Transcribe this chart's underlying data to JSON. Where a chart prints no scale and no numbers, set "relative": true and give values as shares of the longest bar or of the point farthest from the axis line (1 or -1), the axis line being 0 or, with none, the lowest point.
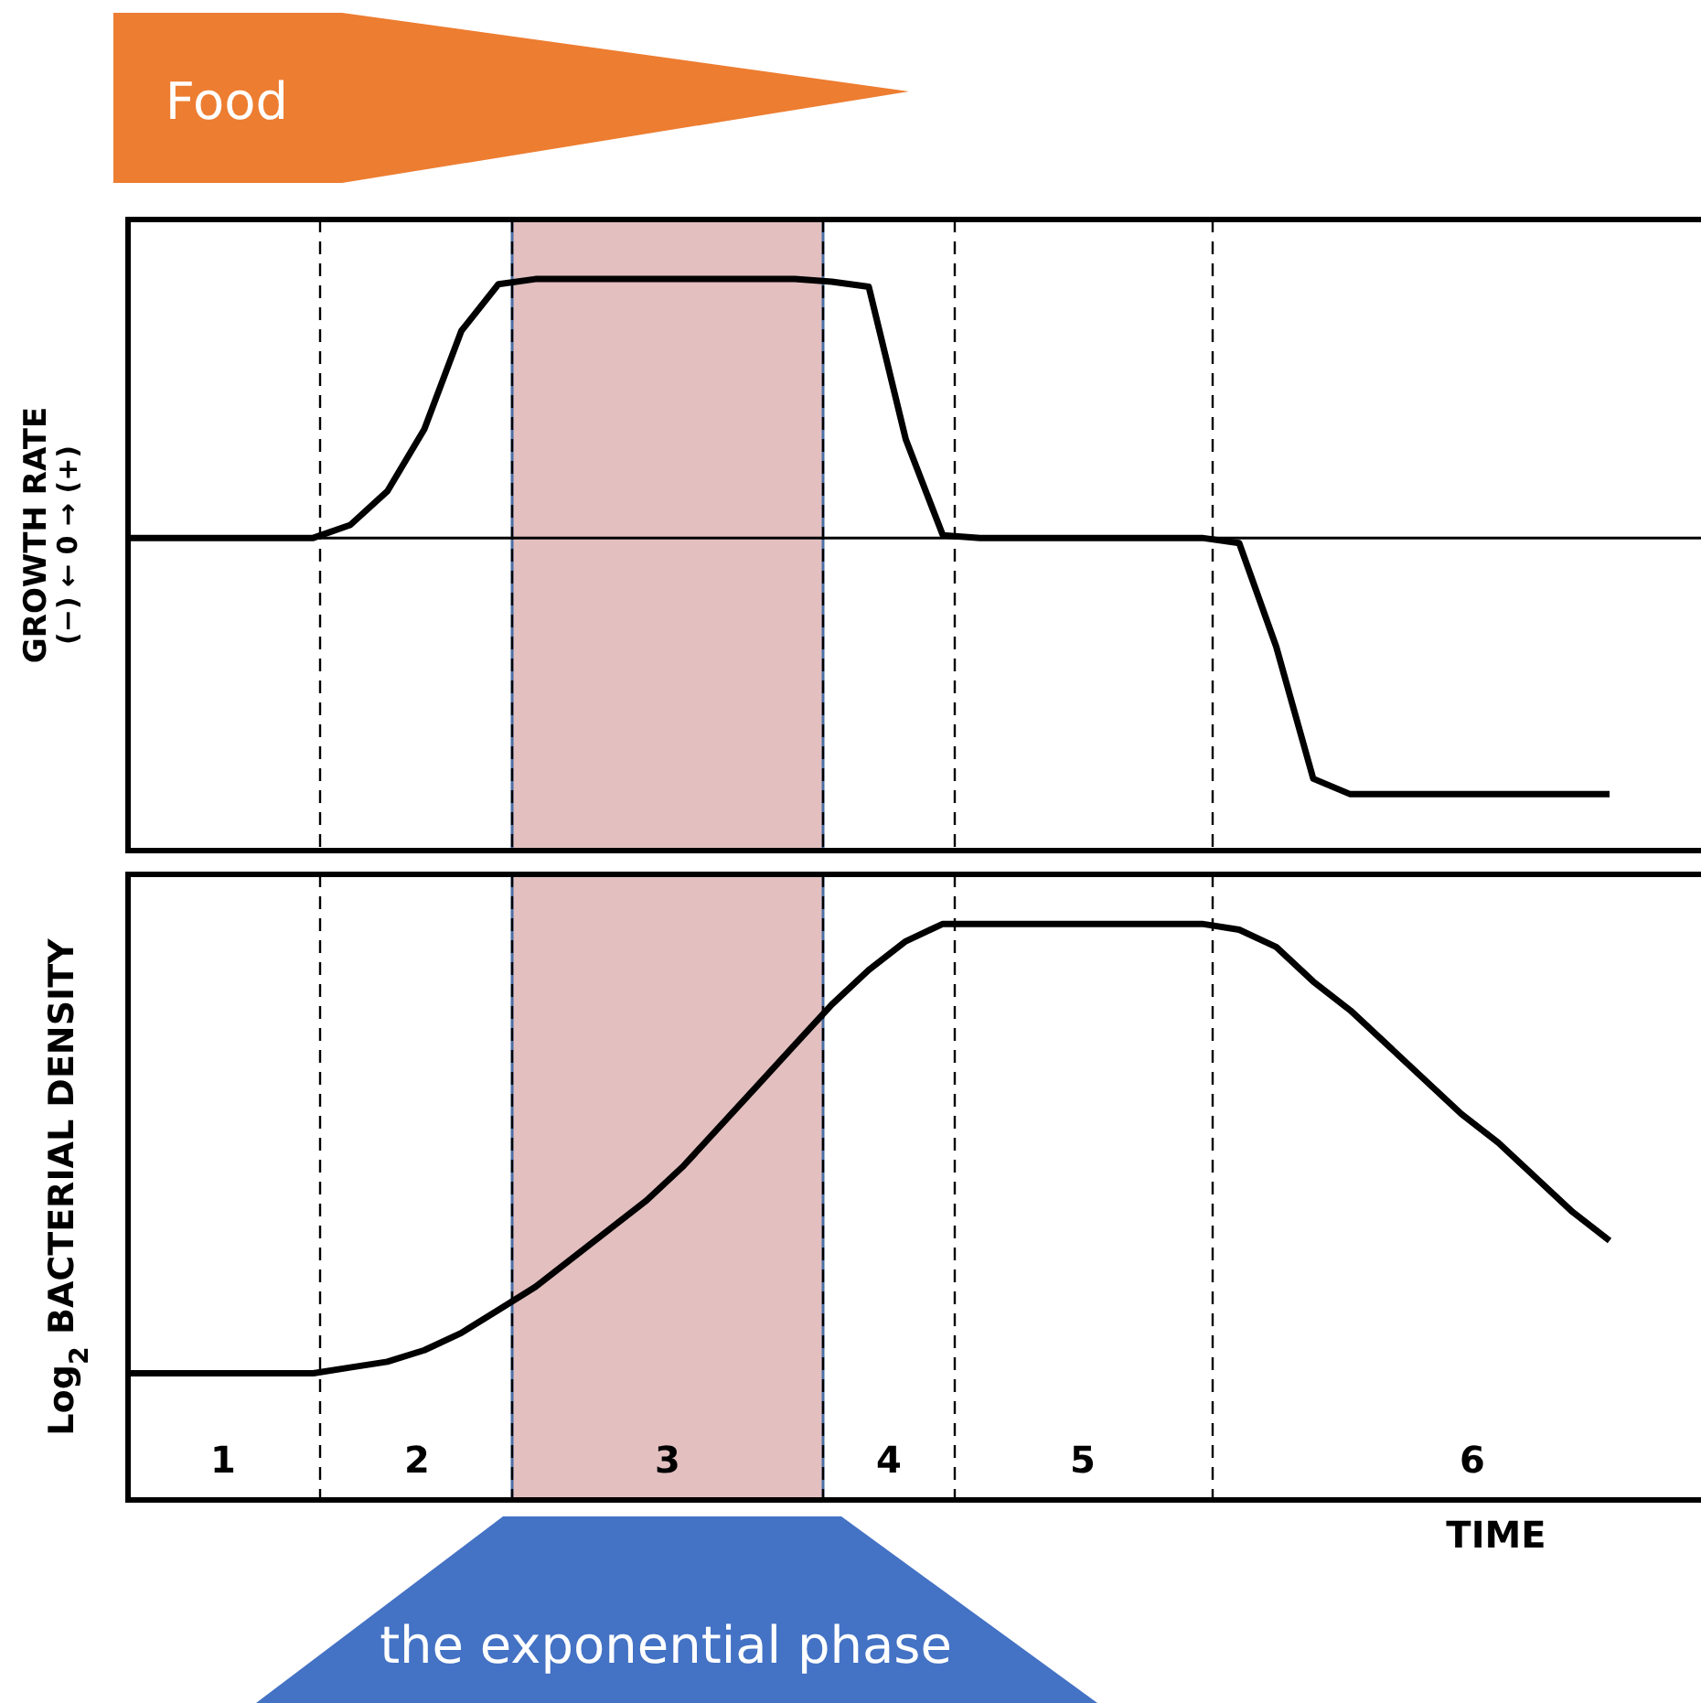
{
  "chart_data": [
    {
      "type": "line",
      "relative": true,
      "ylabel": "GROWTH RATE",
      "tick_labels": false,
      "line_style": "solid",
      "categories": [
        null,
        null,
        null,
        null,
        null,
        null,
        null,
        null,
        null,
        null,
        null,
        null,
        null,
        null,
        null,
        null,
        null,
        null,
        null,
        null,
        null,
        null,
        null,
        null,
        null,
        null,
        null,
        null,
        null,
        null,
        null,
        null,
        null,
        null,
        null,
        null,
        null,
        null,
        null,
        null,
        null
      ],
      "series": [
        {
          "color": "#000000",
          "values": [
            0,
            0,
            0,
            0,
            0,
            0,
            0.05,
            0.18,
            0.42,
            0.8,
            0.98,
            1,
            1,
            1,
            1,
            1,
            1,
            1,
            1,
            0.99,
            0.97,
            0.38,
            0.01,
            0,
            0,
            0,
            0,
            0,
            0,
            0,
            -0.02,
            -0.42,
            -0.93,
            -0.99,
            -0.99,
            -0.99,
            -0.99,
            -0.99,
            -0.99,
            -0.99,
            -0.99
          ]
        }
      ],
      "annotations": [
        "(−) ← 0 → (+)",
        "Food"
      ]
    },
    {
      "type": "line",
      "relative": true,
      "ylabel": "Log$_{2}$ BACTERIAL DENSITY",
      "xlabel": "TIME",
      "tick_labels": false,
      "line_style": "solid",
      "categories": [
        null,
        null,
        null,
        null,
        null,
        null,
        null,
        null,
        null,
        null,
        null,
        null,
        null,
        null,
        null,
        null,
        null,
        null,
        null,
        null,
        null,
        null,
        null,
        null,
        null,
        null,
        null,
        null,
        null,
        null,
        null,
        null,
        null,
        null,
        null,
        null,
        null,
        null,
        null,
        null,
        null
      ],
      "series": [
        {
          "color": "#000000",
          "values": [
            0.22,
            0.22,
            0.22,
            0.22,
            0.22,
            0.22,
            0.23,
            0.24,
            0.26,
            0.29,
            0.33,
            0.37,
            0.42,
            0.47,
            0.52,
            0.58,
            0.65,
            0.72,
            0.79,
            0.86,
            0.92,
            0.97,
            1,
            1,
            1,
            1,
            1,
            1,
            1,
            1,
            0.99,
            0.96,
            0.9,
            0.85,
            0.79,
            0.73,
            0.67,
            0.62,
            0.56,
            0.5,
            0.45
          ]
        }
      ],
      "annotations": [
        "1",
        "2",
        "3",
        "4",
        "5",
        "6",
        "the exponential phase"
      ]
    }
  ]
}
